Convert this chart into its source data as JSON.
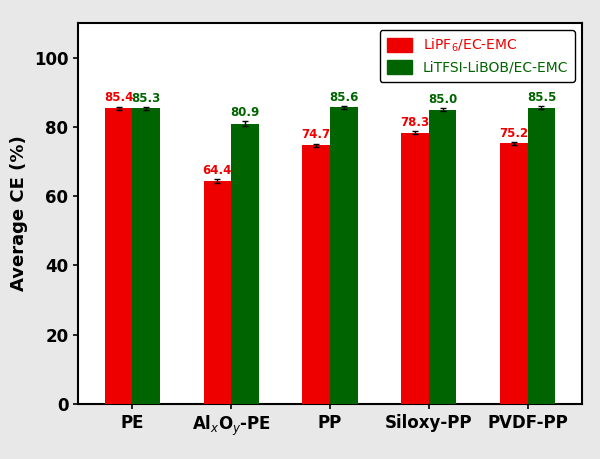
{
  "categories": [
    "PE",
    "Al$_x$O$_y$-PE",
    "PP",
    "Siloxy-PP",
    "PVDF-PP"
  ],
  "red_values": [
    85.4,
    64.4,
    74.7,
    78.3,
    75.2
  ],
  "green_values": [
    85.3,
    80.9,
    85.6,
    85.0,
    85.5
  ],
  "red_errors": [
    0.4,
    0.5,
    0.4,
    0.5,
    0.4
  ],
  "green_errors": [
    0.4,
    0.7,
    0.4,
    0.4,
    0.4
  ],
  "red_color": "#EE0000",
  "green_color": "#006400",
  "red_label": "LiPF$_6$/EC-EMC",
  "green_label": "LiTFSI-LiBOB/EC-EMC",
  "ylabel": "Average CE (%)",
  "ylim": [
    0,
    110
  ],
  "yticks": [
    0,
    20,
    40,
    60,
    80,
    100
  ],
  "bar_width": 0.28,
  "bar_gap": 0.0,
  "value_fontsize": 8.5,
  "label_fontsize": 13,
  "tick_fontsize": 12,
  "legend_fontsize": 10,
  "outer_bg": "#e8e8e8",
  "inner_bg": "#ffffff"
}
